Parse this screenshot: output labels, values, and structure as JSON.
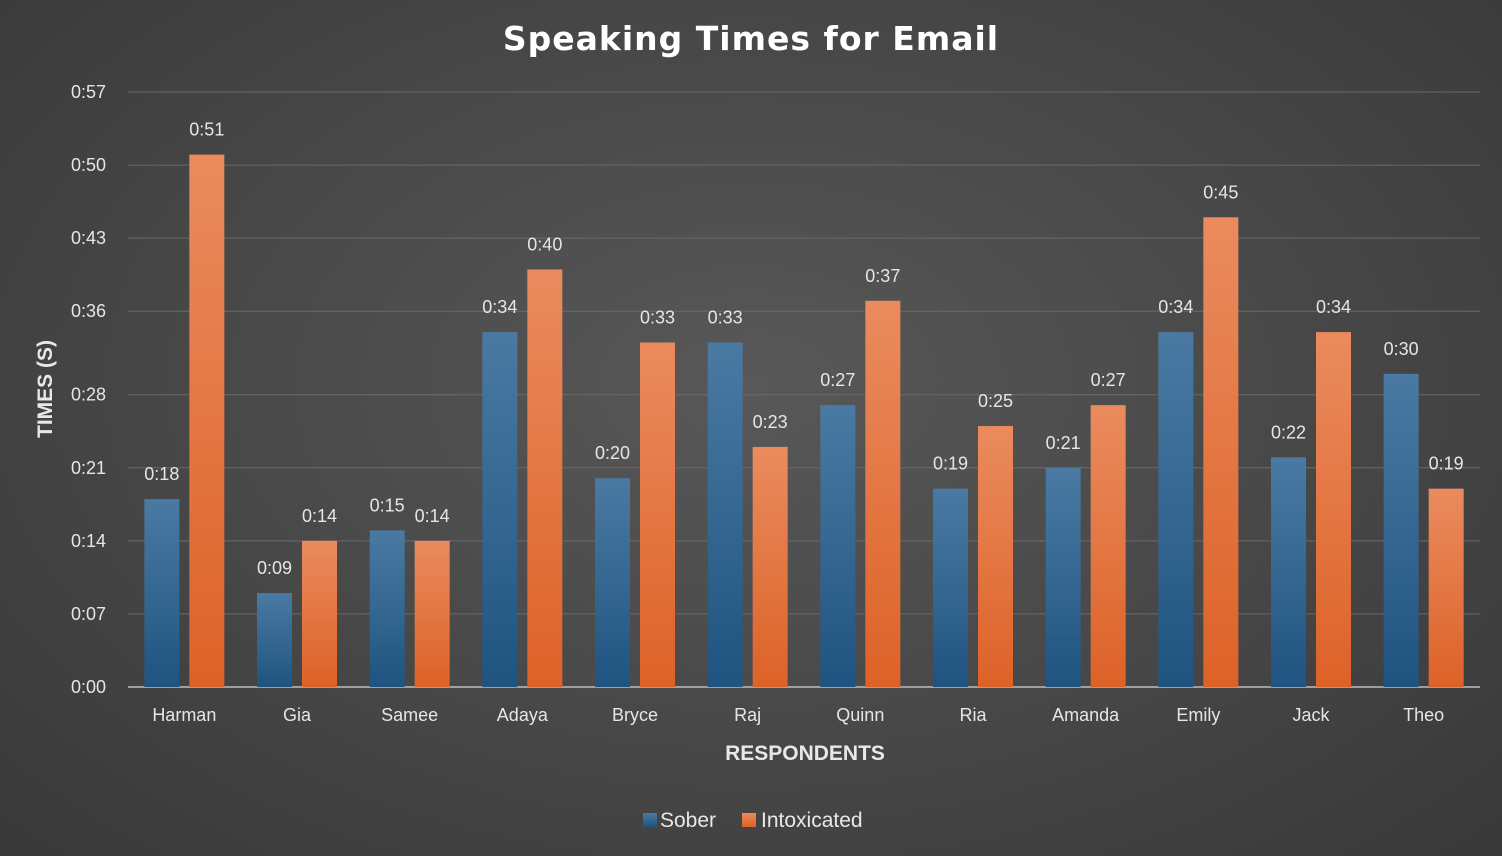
{
  "chart_data": {
    "type": "bar",
    "title": "Speaking Times for Email",
    "xlabel": "RESPONDENTS",
    "ylabel": "TIMES (S)",
    "categories": [
      "Harman",
      "Gia",
      "Samee",
      "Adaya",
      "Bryce",
      "Raj",
      "Quinn",
      "Ria",
      "Amanda",
      "Emily",
      "Jack",
      "Theo"
    ],
    "series": [
      {
        "name": "Sober",
        "values": [
          18,
          9,
          15,
          34,
          20,
          33,
          27,
          19,
          21,
          34,
          22,
          30
        ],
        "labels": [
          "0:18",
          "0:09",
          "0:15",
          "0:34",
          "0:20",
          "0:33",
          "0:27",
          "0:19",
          "0:21",
          "0:34",
          "0:22",
          "0:30"
        ],
        "color": "#2e6390"
      },
      {
        "name": "Intoxicated",
        "values": [
          51,
          14,
          14,
          40,
          33,
          23,
          37,
          25,
          27,
          45,
          34,
          19
        ],
        "labels": [
          "0:51",
          "0:14",
          "0:14",
          "0:40",
          "0:33",
          "0:23",
          "0:37",
          "0:25",
          "0:27",
          "0:45",
          "0:34",
          "0:19"
        ],
        "color": "#e8743b"
      }
    ],
    "y_ticks": [
      {
        "value": 0,
        "label": "0:00"
      },
      {
        "value": 7,
        "label": "0:07"
      },
      {
        "value": 14,
        "label": "0:14"
      },
      {
        "value": 21,
        "label": "0:21"
      },
      {
        "value": 28,
        "label": "0:28"
      },
      {
        "value": 36,
        "label": "0:36"
      },
      {
        "value": 43,
        "label": "0:43"
      },
      {
        "value": 50,
        "label": "0:50"
      },
      {
        "value": 57,
        "label": "0:57"
      }
    ],
    "ylim": [
      0,
      57
    ],
    "grid": true,
    "legend_position": "bottom"
  }
}
